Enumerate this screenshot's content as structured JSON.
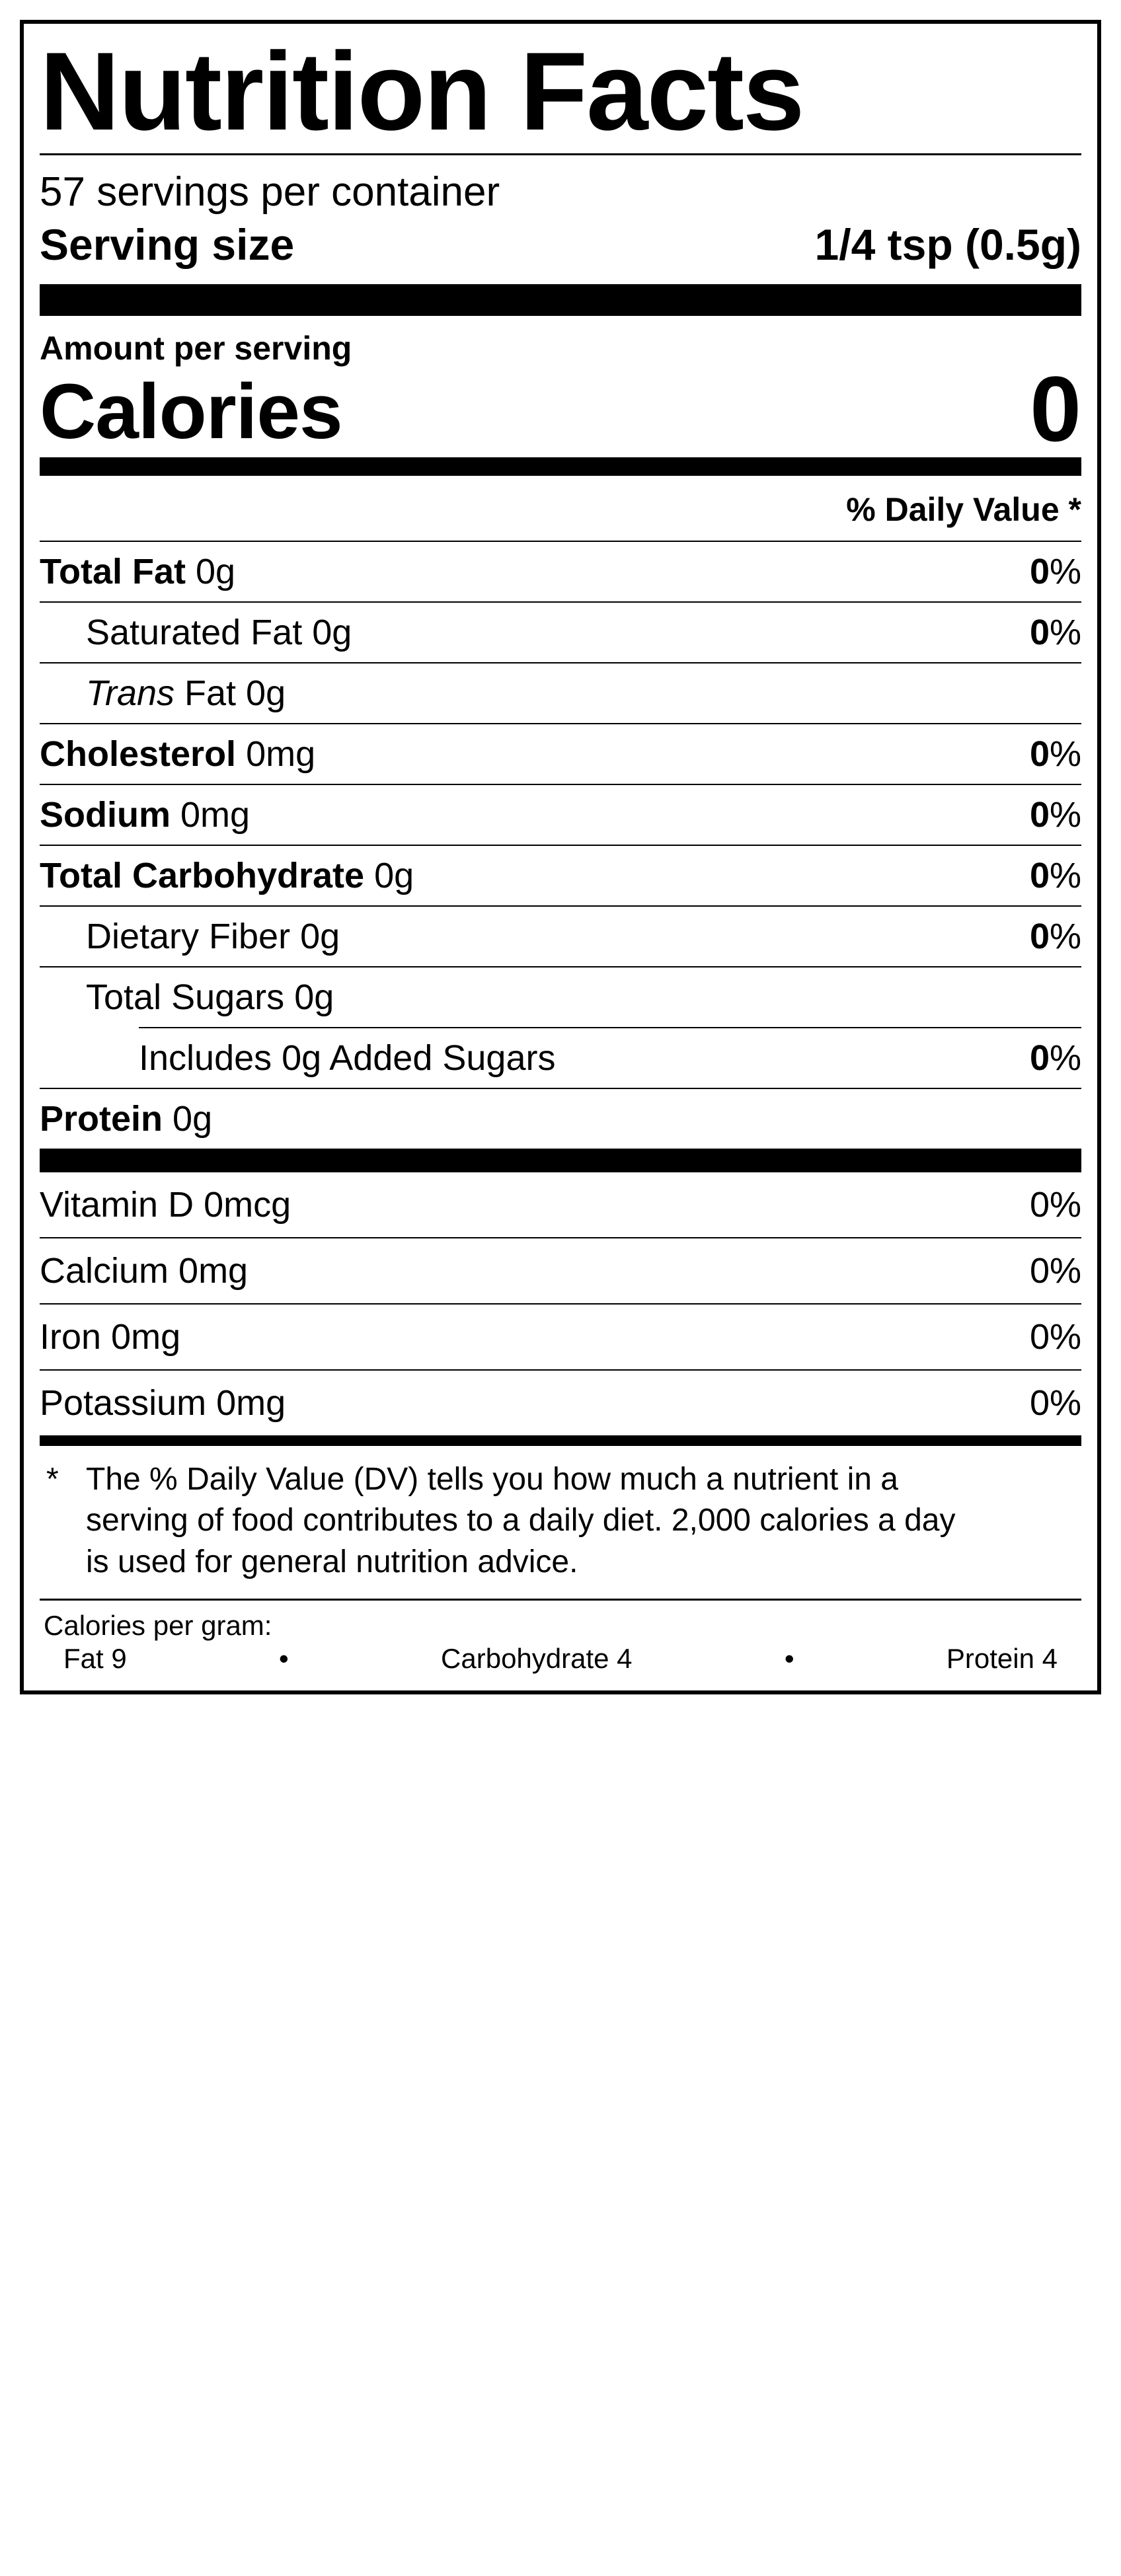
{
  "title": "Nutrition Facts",
  "servings_per_container": "57 servings per container",
  "serving_size_label": "Serving size",
  "serving_size_value": "1/4 tsp (0.5g)",
  "amount_per_serving": "Amount per serving",
  "calories_label": "Calories",
  "calories_value": "0",
  "dv_header": "% Daily Value *",
  "nutrients": {
    "total_fat": {
      "name": "Total Fat",
      "amount": "0g",
      "dv": "0"
    },
    "sat_fat": {
      "name": "Saturated Fat",
      "amount": "0g",
      "dv": "0"
    },
    "trans_fat": {
      "prefix": "Trans",
      "rest": " Fat 0g"
    },
    "cholesterol": {
      "name": "Cholesterol",
      "amount": "0mg",
      "dv": "0"
    },
    "sodium": {
      "name": "Sodium",
      "amount": "0mg",
      "dv": "0"
    },
    "total_carb": {
      "name": "Total Carbohydrate",
      "amount": "0g",
      "dv": "0"
    },
    "fiber": {
      "name": "Dietary Fiber",
      "amount": "0g",
      "dv": "0"
    },
    "total_sugars": {
      "name": "Total Sugars",
      "amount": "0g"
    },
    "added_sugars": {
      "text": "Includes 0g Added Sugars",
      "dv": "0"
    },
    "protein": {
      "name": "Protein",
      "amount": "0g"
    }
  },
  "vitamins": {
    "vitd": {
      "text": "Vitamin D 0mcg",
      "dv": "0%"
    },
    "calcium": {
      "text": "Calcium 0mg",
      "dv": "0%"
    },
    "iron": {
      "text": "Iron 0mg",
      "dv": "0%"
    },
    "potassium": {
      "text": "Potassium 0mg",
      "dv": "0%"
    }
  },
  "footnote_star": "*",
  "footnote": "The % Daily Value (DV) tells you how much a nutrient in a serving of food contributes to a daily diet. 2,000 calories a day is used for general nutrition advice.",
  "cpg_title": "Calories per gram:",
  "cpg": {
    "fat": "Fat 9",
    "carb": "Carbohydrate 4",
    "protein": "Protein 4"
  }
}
